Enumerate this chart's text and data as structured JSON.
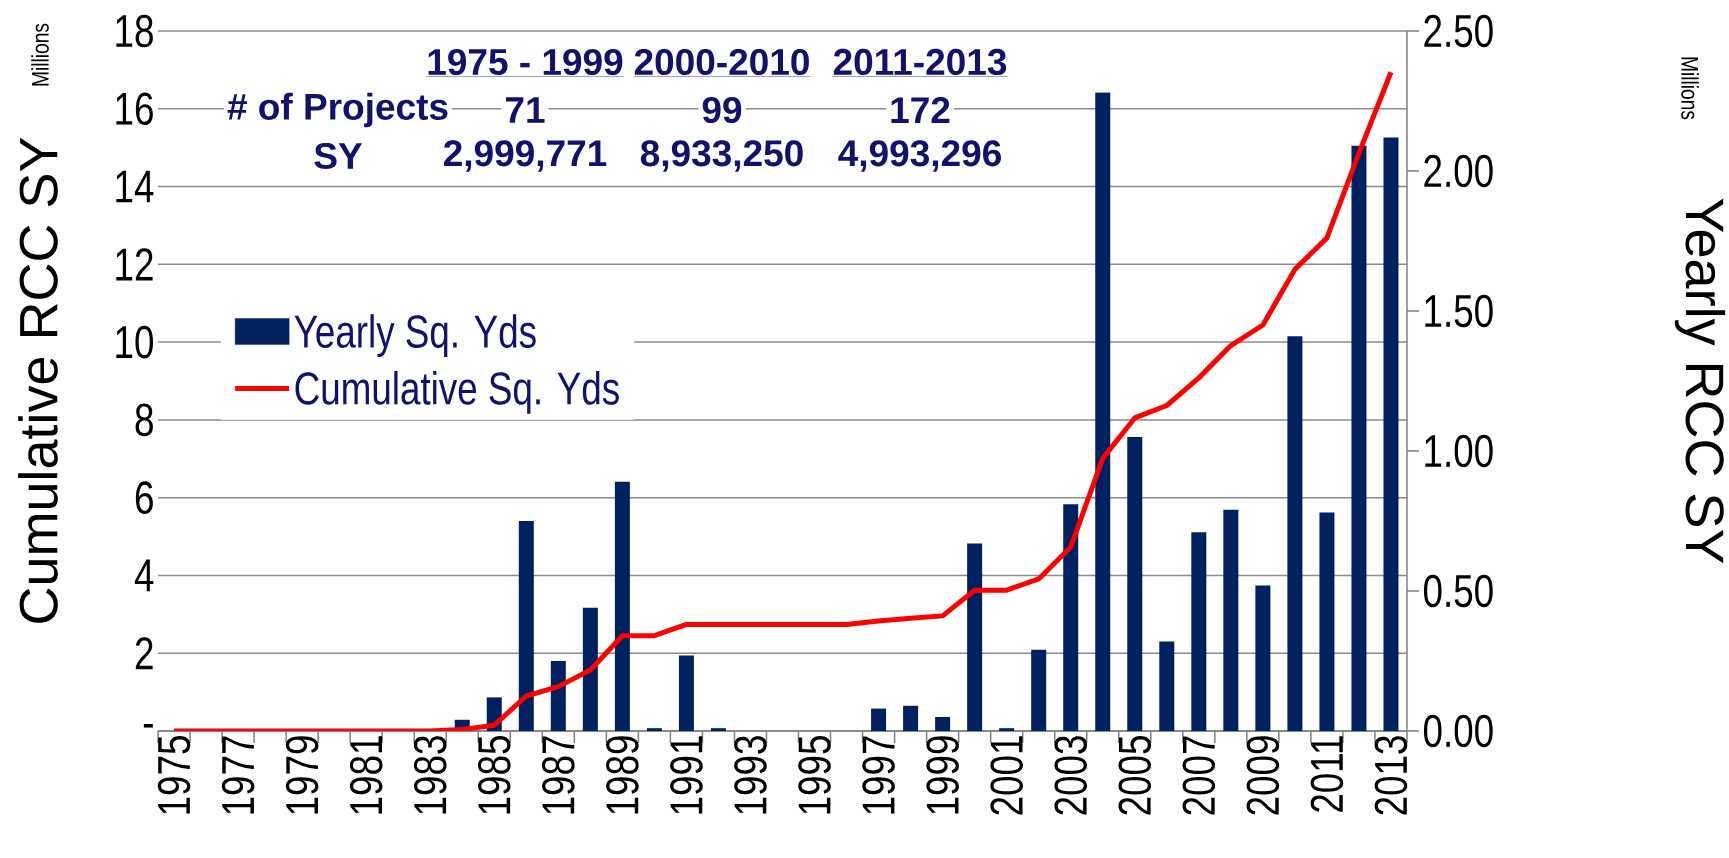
{
  "chart_data": {
    "type": "bar",
    "categories": [
      "1975",
      null,
      "1977",
      null,
      "1979",
      null,
      "1981",
      null,
      "1983",
      null,
      "1985",
      null,
      "1987",
      null,
      "1989",
      null,
      "1991",
      null,
      "1993",
      null,
      "1995",
      null,
      "1997",
      null,
      "1999",
      null,
      "2001",
      null,
      "2003",
      null,
      "2005",
      null,
      "2007",
      null,
      "2009",
      null,
      "2011",
      null,
      "2013"
    ],
    "series": [
      {
        "name": "Yearly Sq. Yds",
        "type": "bar",
        "axis": "y2",
        "color": "#002060",
        "values": [
          0,
          0,
          0,
          0,
          0,
          0,
          0,
          0,
          0,
          0.04,
          0.12,
          0.75,
          0.25,
          0.44,
          0.89,
          0.01,
          0.27,
          0.01,
          0,
          0,
          0,
          0,
          0.08,
          0.09,
          0.05,
          0.67,
          0.01,
          0.29,
          0.81,
          2.28,
          1.05,
          0.32,
          0.71,
          0.79,
          0.52,
          1.41,
          0.78,
          2.09,
          2.12
        ]
      },
      {
        "name": "Cumulative Sq. Yds",
        "type": "line",
        "color": "#ff0000",
        "values": [
          0,
          0,
          0,
          0,
          0,
          0,
          0,
          0,
          0,
          0.04,
          0.15,
          0.9,
          1.14,
          1.57,
          2.45,
          2.45,
          2.74,
          2.74,
          2.74,
          2.74,
          2.74,
          2.74,
          2.83,
          2.9,
          2.96,
          3.62,
          3.62,
          3.91,
          4.73,
          7.01,
          8.05,
          8.37,
          9.08,
          9.91,
          10.44,
          11.87,
          12.68,
          14.86,
          16.94
        ]
      }
    ],
    "ylabel": "Cumulative RCC SY",
    "y2label": "Yearly RCC SY",
    "ylim": [
      0,
      18
    ],
    "yticks": [
      {
        "value": 0,
        "label": "-"
      },
      2,
      4,
      6,
      8,
      10,
      12,
      14,
      16,
      18
    ],
    "y2lim": [
      0,
      2.5
    ],
    "y2ticks": [
      {
        "value": 0,
        "label": "0.00"
      },
      {
        "value": 0.5,
        "label": "0.50"
      },
      {
        "value": 1,
        "label": "1.00"
      },
      {
        "value": 1.5,
        "label": "1.50"
      },
      {
        "value": 2,
        "label": "2.00"
      },
      {
        "value": 2.5,
        "label": "2.50"
      }
    ],
    "grid": "y",
    "legend": "left",
    "annotations": [
      "Millions",
      "Millions",
      "1975 - 1999",
      "2000-2010",
      "2011-2013",
      "# of Projects",
      "71",
      "99",
      "172",
      "SY",
      "2,999,771",
      "8,933,250",
      "4,993,296"
    ]
  }
}
